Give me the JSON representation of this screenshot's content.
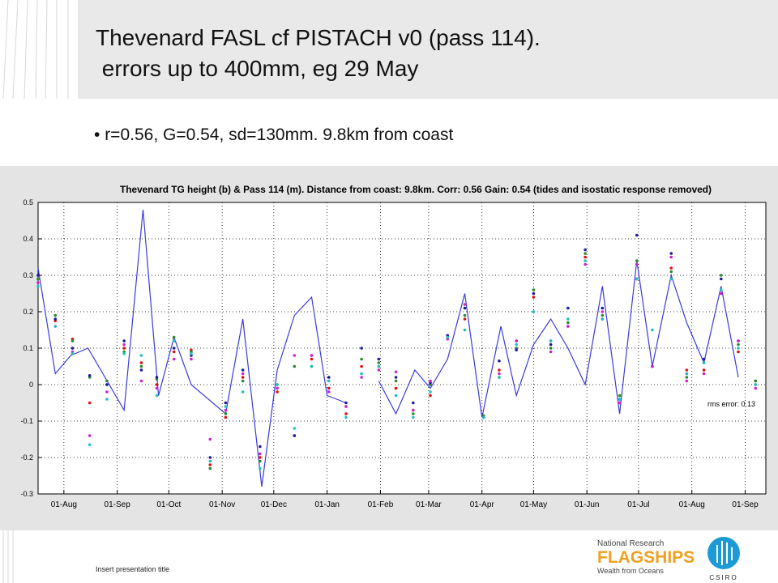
{
  "slide": {
    "title": [
      "Thevenard FASL cf PISTACH v0 (pass 114).",
      " errors up to 400mm, eg 29 May"
    ],
    "bullet": "r=0.56, G=0.54, sd=130mm. 9.8km from coast",
    "footer": "Insert presentation title",
    "logo": [
      "National Research",
      "FLAGSHIPS",
      "Wealth from Oceans",
      "CSIRO"
    ]
  },
  "chart_data": {
    "type": "line",
    "title": "Thevenard TG height (b) & Pass 114 (m). Distance from coast: 9.8km. Corr: 0.56 Gain: 0.54 (tides and isostatic response removed)",
    "annotation": "rms error: 0.13",
    "xlim": [
      -15,
      408
    ],
    "ylim": [
      -0.3,
      0.5
    ],
    "grid": true,
    "xticks": [
      {
        "value": 0,
        "label": "01-Aug"
      },
      {
        "value": 31,
        "label": "01-Sep"
      },
      {
        "value": 61,
        "label": "01-Oct"
      },
      {
        "value": 92,
        "label": "01-Nov"
      },
      {
        "value": 122,
        "label": "01-Dec"
      },
      {
        "value": 153,
        "label": "01-Jan"
      },
      {
        "value": 184,
        "label": "01-Feb"
      },
      {
        "value": 212,
        "label": "01-Mar"
      },
      {
        "value": 243,
        "label": "01-Apr"
      },
      {
        "value": 273,
        "label": "01-May"
      },
      {
        "value": 304,
        "label": "01-Jun"
      },
      {
        "value": 334,
        "label": "01-Jul"
      },
      {
        "value": 365,
        "label": "01-Aug"
      },
      {
        "value": 396,
        "label": "01-Sep"
      }
    ],
    "yticks": [
      0.5,
      0.4,
      0.3,
      0.2,
      0.1,
      0,
      -0.1,
      -0.2,
      -0.3
    ],
    "series": [
      {
        "type": "line",
        "color": "#3b3bdc",
        "x": [
          -15,
          -5,
          4,
          14,
          35,
          46,
          55,
          64,
          74,
          94,
          104,
          115,
          124,
          134,
          144,
          153,
          164,
          174,
          183,
          193,
          204,
          213,
          223,
          233,
          243,
          254,
          263,
          273,
          283,
          293,
          303,
          313,
          323,
          333,
          342,
          353,
          362,
          372,
          382,
          392
        ],
        "values": [
          0.32,
          0.03,
          0.08,
          0.1,
          -0.07,
          0.48,
          -0.03,
          0.13,
          0,
          -0.08,
          0.18,
          -0.28,
          0.04,
          0.19,
          0.24,
          -0.03,
          -0.05,
          null,
          0.01,
          -0.08,
          0.04,
          -0.01,
          0.07,
          0.25,
          -0.09,
          0.16,
          -0.03,
          0.11,
          0.18,
          0.1,
          0,
          0.27,
          -0.08,
          0.34,
          0.05,
          0.3,
          0.17,
          0.06,
          0.27,
          0.02
        ]
      },
      {
        "type": "scatter",
        "color": "#e01010",
        "x": [
          -15,
          -5,
          5,
          15,
          25,
          35,
          45,
          54,
          64,
          74,
          85,
          94,
          104,
          114,
          124,
          134,
          144,
          154,
          164,
          173,
          183,
          193,
          203,
          213,
          223,
          233,
          244,
          253,
          263,
          273,
          283,
          293,
          303,
          313,
          323,
          333,
          342,
          353,
          362,
          372,
          382,
          392,
          402
        ],
        "values": [
          0.3,
          0.175,
          0.125,
          -0.05,
          0,
          0.1,
          0.06,
          0,
          0.09,
          0.095,
          -0.22,
          -0.09,
          0.02,
          -0.2,
          -0.02,
          -0.14,
          0.07,
          -0.01,
          -0.08,
          0.05,
          0.05,
          -0.01,
          -0.07,
          -0.03,
          0.13,
          0.18,
          -0.09,
          0.04,
          0.12,
          0.24,
          0.12,
          0.16,
          0.35,
          0.18,
          -0.05,
          0.29,
          0.05,
          0.32,
          0.04,
          0.04,
          0.25,
          0.09,
          0.01
        ]
      },
      {
        "type": "scatter",
        "color": "#2a8a2a",
        "x": [
          -15,
          -5,
          5,
          15,
          25,
          35,
          45,
          54,
          64,
          74,
          85,
          94,
          104,
          114,
          124,
          134,
          144,
          154,
          164,
          173,
          183,
          193,
          203,
          213,
          223,
          233,
          244,
          253,
          263,
          273,
          283,
          293,
          303,
          313,
          323,
          333,
          342,
          353,
          362,
          372,
          382,
          392,
          402
        ],
        "values": [
          0.29,
          0.19,
          0.12,
          0.02,
          0.01,
          0.09,
          0.05,
          0.015,
          0.13,
          0.09,
          -0.23,
          -0.08,
          0.01,
          -0.21,
          0,
          0.05,
          0.05,
          0.02,
          -0.06,
          0.07,
          0.06,
          0.01,
          -0.08,
          0,
          0.13,
          0.19,
          -0.085,
          0.02,
          0.1,
          0.26,
          0.1,
          0.17,
          0.36,
          0.19,
          -0.03,
          0.34,
          0.05,
          0.31,
          0.02,
          0.06,
          0.3,
          0.11,
          0.01
        ]
      },
      {
        "type": "scatter",
        "color": "#1a1aa0",
        "x": [
          -15,
          -5,
          5,
          15,
          25,
          35,
          45,
          54,
          64,
          74,
          85,
          94,
          104,
          114,
          124,
          134,
          144,
          154,
          164,
          173,
          183,
          193,
          203,
          213,
          223,
          233,
          244,
          253,
          263,
          273,
          283,
          293,
          303,
          313,
          323,
          333,
          342,
          353,
          362,
          372,
          382,
          392,
          402
        ],
        "values": [
          0.3,
          0.18,
          0.1,
          0.025,
          0,
          0.12,
          0.04,
          0.02,
          0.1,
          0.08,
          -0.2,
          -0.05,
          0.04,
          -0.17,
          -0.01,
          -0.14,
          0.08,
          0.02,
          -0.05,
          0.1,
          0.07,
          0.02,
          -0.05,
          0.005,
          0.135,
          0.21,
          -0.09,
          0.065,
          0.095,
          0.25,
          0.11,
          0.21,
          0.37,
          0.21,
          -0.04,
          0.41,
          0.05,
          0.36,
          0.03,
          0.07,
          0.29,
          0.12,
          0
        ]
      },
      {
        "type": "scatter",
        "color": "#d020d0",
        "x": [
          -15,
          -5,
          5,
          15,
          25,
          35,
          45,
          54,
          64,
          74,
          85,
          94,
          104,
          114,
          124,
          134,
          144,
          154,
          164,
          173,
          183,
          193,
          203,
          213,
          223,
          233,
          244,
          253,
          263,
          273,
          283,
          293,
          303,
          313,
          323,
          333,
          342,
          353,
          362,
          372,
          382,
          392,
          402
        ],
        "values": [
          0.28,
          0.16,
          0.09,
          -0.14,
          -0.02,
          0.11,
          0.01,
          -0.01,
          0.07,
          0.07,
          -0.15,
          -0.07,
          0.03,
          -0.19,
          -0.01,
          0.08,
          0.08,
          -0.02,
          -0.06,
          0.02,
          0.04,
          0.035,
          -0.07,
          0.01,
          0.125,
          0.22,
          -0.09,
          0.03,
          0.12,
          0.2,
          0.09,
          0.16,
          0.33,
          0.2,
          -0.05,
          0.33,
          0.05,
          0.35,
          0.01,
          0.03,
          0.25,
          0.12,
          -0.01
        ]
      },
      {
        "type": "scatter",
        "color": "#20c0c0",
        "x": [
          -15,
          -5,
          5,
          15,
          25,
          35,
          45,
          54,
          64,
          74,
          85,
          94,
          104,
          114,
          124,
          134,
          144,
          154,
          164,
          173,
          183,
          193,
          203,
          213,
          223,
          233,
          244,
          253,
          263,
          273,
          283,
          293,
          303,
          313,
          323,
          333,
          342,
          353,
          362,
          372,
          382,
          392,
          402
        ],
        "values": [
          0.27,
          0.16,
          0.085,
          -0.165,
          -0.04,
          0.085,
          0.08,
          -0.03,
          0.12,
          0.085,
          -0.21,
          -0.06,
          -0.02,
          -0.23,
          0,
          -0.12,
          0.05,
          0.01,
          -0.09,
          0.03,
          0.05,
          -0.03,
          -0.09,
          -0.02,
          0.13,
          0.15,
          -0.09,
          0.02,
          0.11,
          0.2,
          0.12,
          0.18,
          0.34,
          0.18,
          -0.04,
          0.29,
          0.15,
          0.29,
          0.03,
          0.06,
          0.26,
          0.1,
          0
        ]
      }
    ]
  }
}
